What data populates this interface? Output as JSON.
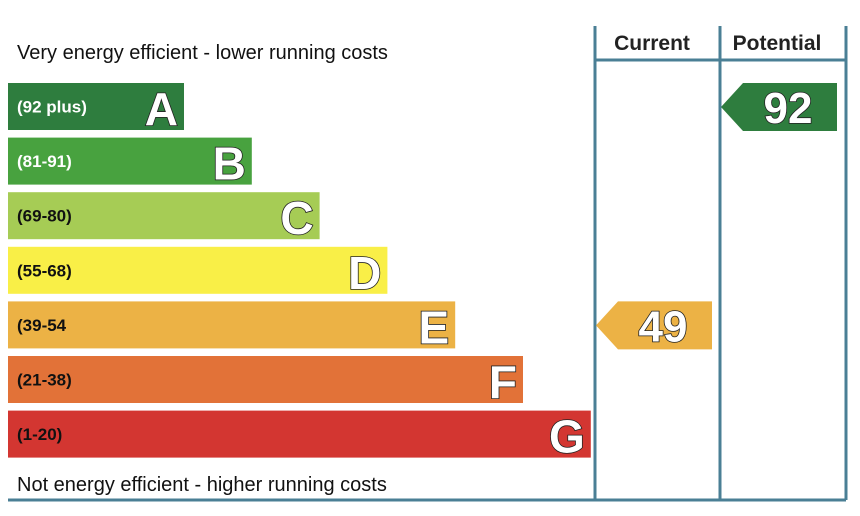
{
  "chart_data": {
    "type": "bar",
    "top_label": "Very energy efficient - lower running costs",
    "bottom_label": "Not energy efficient - higher running costs",
    "columns": [
      "Current",
      "Potential"
    ],
    "bands": [
      {
        "letter": "A",
        "range": "(92 plus)",
        "color": "#2e7d3e",
        "text_color": "#ffffff"
      },
      {
        "letter": "B",
        "range": "(81-91)",
        "color": "#48a23f",
        "text_color": "#ffffff"
      },
      {
        "letter": "C",
        "range": "(69-80)",
        "color": "#a6cc55",
        "text_color": "#111111"
      },
      {
        "letter": "D",
        "range": "(55-68)",
        "color": "#f9ef47",
        "text_color": "#111111"
      },
      {
        "letter": "E",
        "range": "(39-54",
        "color": "#ecb245",
        "text_color": "#111111"
      },
      {
        "letter": "F",
        "range": "(21-38)",
        "color": "#e27238",
        "text_color": "#111111"
      },
      {
        "letter": "G",
        "range": "(1-20)",
        "color": "#d33631",
        "text_color": "#111111"
      }
    ],
    "ratings": [
      {
        "column": "Current",
        "value": "49",
        "band": "E",
        "color": "#ecb245"
      },
      {
        "column": "Potential",
        "value": "92",
        "band": "A",
        "color": "#2e7d3e"
      }
    ],
    "frame_color": "#4a7f95"
  }
}
